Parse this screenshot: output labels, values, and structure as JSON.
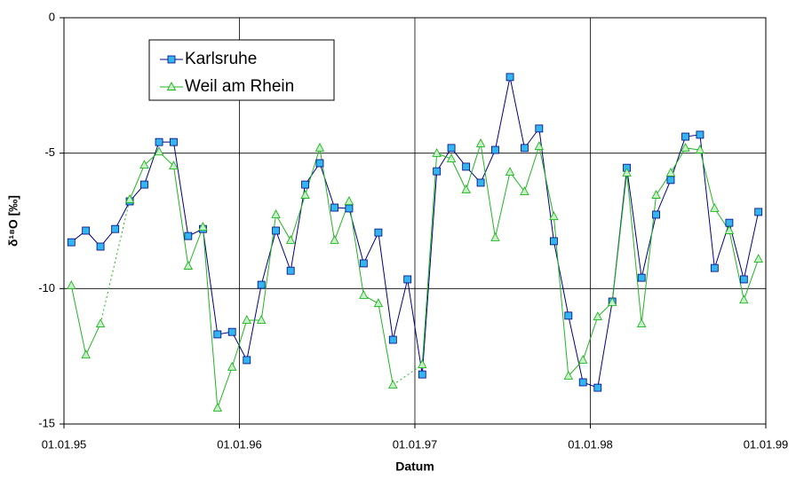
{
  "chart_data": {
    "type": "line",
    "x_label": "Datum",
    "y_label": "δ¹⁸O [‰]",
    "x": [
      1995.042,
      1995.125,
      1995.208,
      1995.292,
      1995.375,
      1995.458,
      1995.542,
      1995.625,
      1995.708,
      1995.792,
      1995.875,
      1995.958,
      1996.042,
      1996.125,
      1996.208,
      1996.292,
      1996.375,
      1996.458,
      1996.542,
      1996.625,
      1996.708,
      1996.792,
      1996.875,
      1996.958,
      1997.042,
      1997.125,
      1997.208,
      1997.292,
      1997.375,
      1997.458,
      1997.542,
      1997.625,
      1997.708,
      1997.792,
      1997.875,
      1997.958,
      1998.042,
      1998.125,
      1998.208,
      1998.292,
      1998.375,
      1998.458,
      1998.542,
      1998.625,
      1998.708,
      1998.792,
      1998.875,
      1998.958
    ],
    "series": [
      {
        "name": "Karlsruhe",
        "color": "#000080",
        "marker": "square",
        "marker_color": "#33b5f0",
        "values": [
          -8.29,
          -7.86,
          -8.45,
          -7.8,
          -6.78,
          -6.16,
          -4.59,
          -4.59,
          -8.06,
          -7.8,
          -11.69,
          -11.6,
          -12.64,
          -9.86,
          -7.86,
          -9.34,
          -6.16,
          -5.37,
          -7.01,
          -7.04,
          -9.07,
          -7.93,
          -11.89,
          -9.66,
          -13.17,
          -5.67,
          -4.81,
          -5.5,
          -6.09,
          -4.88,
          -2.19,
          -4.81,
          -4.09,
          -8.25,
          -11.0,
          -13.46,
          -13.66,
          -10.48,
          -5.54,
          -9.6,
          -7.27,
          -5.99,
          -4.39,
          -4.32,
          -9.24,
          -7.57,
          -9.66,
          -7.17
        ]
      },
      {
        "name": "Weil am Rhein",
        "color": "#22b522",
        "marker": "triangle",
        "marker_color": "#c8f0c8",
        "values": [
          -9.89,
          -12.45,
          -11.3,
          null,
          -6.71,
          -5.44,
          -4.95,
          -5.47,
          -9.17,
          -7.73,
          -14.41,
          -12.9,
          -11.17,
          -11.17,
          -7.27,
          -8.22,
          -6.55,
          -4.81,
          -8.22,
          -6.78,
          -10.25,
          -10.55,
          -13.56,
          null,
          -12.81,
          -5.01,
          -5.21,
          -6.35,
          -4.65,
          -8.12,
          -5.7,
          -6.42,
          -4.75,
          -7.34,
          -13.23,
          -12.64,
          -11.04,
          -10.51,
          -5.73,
          -11.3,
          -6.55,
          -5.73,
          -4.81,
          -4.88,
          -7.04,
          -7.86,
          -10.42,
          -8.91
        ]
      }
    ],
    "xlim": [
      1995,
      1999
    ],
    "xticks": [
      {
        "value": 1995,
        "label": "01.01.95"
      },
      {
        "value": 1996,
        "label": "01.01.96"
      },
      {
        "value": 1997,
        "label": "01.01.97"
      },
      {
        "value": 1998,
        "label": "01.01.98"
      },
      {
        "value": 1999,
        "label": "01.01.99"
      }
    ],
    "ylim": [
      -15,
      0
    ],
    "yticks": [
      -15,
      -10,
      -5,
      0
    ],
    "grid": true,
    "legend": "upper left"
  }
}
